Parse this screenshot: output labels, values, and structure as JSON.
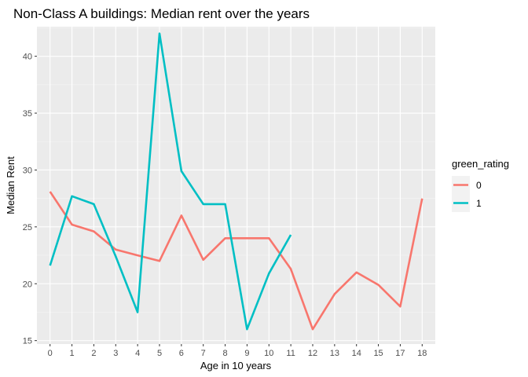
{
  "chart_data": {
    "type": "line",
    "title": "Non-Class A buildings: Median rent over the years",
    "xlabel": "Age in 10 years",
    "ylabel": "Median Rent",
    "x_categories": [
      "0",
      "1",
      "2",
      "3",
      "4",
      "5",
      "6",
      "7",
      "8",
      "9",
      "10",
      "11",
      "12",
      "13",
      "14",
      "15",
      "17",
      "18"
    ],
    "ylim": [
      14.7,
      42.6
    ],
    "yticks": [
      15,
      20,
      25,
      30,
      35,
      40
    ],
    "grid": true,
    "legend": {
      "title": "green_rating",
      "position": "right"
    },
    "series": [
      {
        "name": "0",
        "color": "#F8766D",
        "points": [
          [
            "0",
            28.1
          ],
          [
            "1",
            25.2
          ],
          [
            "2",
            24.6
          ],
          [
            "3",
            23.0
          ],
          [
            "4",
            22.5
          ],
          [
            "5",
            22.0
          ],
          [
            "6",
            26.0
          ],
          [
            "7",
            22.1
          ],
          [
            "8",
            24.0
          ],
          [
            "9",
            24.0
          ],
          [
            "10",
            24.0
          ],
          [
            "11",
            21.3
          ],
          [
            "12",
            16.0
          ],
          [
            "13",
            19.1
          ],
          [
            "14",
            21.0
          ],
          [
            "15",
            19.9
          ],
          [
            "17",
            18.0
          ],
          [
            "18",
            27.5
          ]
        ]
      },
      {
        "name": "1",
        "color": "#00BFC4",
        "points": [
          [
            "0",
            21.6
          ],
          [
            "1",
            27.7
          ],
          [
            "2",
            27.0
          ],
          [
            "3",
            22.4
          ],
          [
            "4",
            17.5
          ],
          [
            "5",
            42.0
          ],
          [
            "6",
            29.9
          ],
          [
            "7",
            27.0
          ],
          [
            "8",
            27.0
          ],
          [
            "9",
            16.0
          ],
          [
            "10",
            20.9
          ],
          [
            "11",
            24.3
          ]
        ]
      }
    ]
  }
}
